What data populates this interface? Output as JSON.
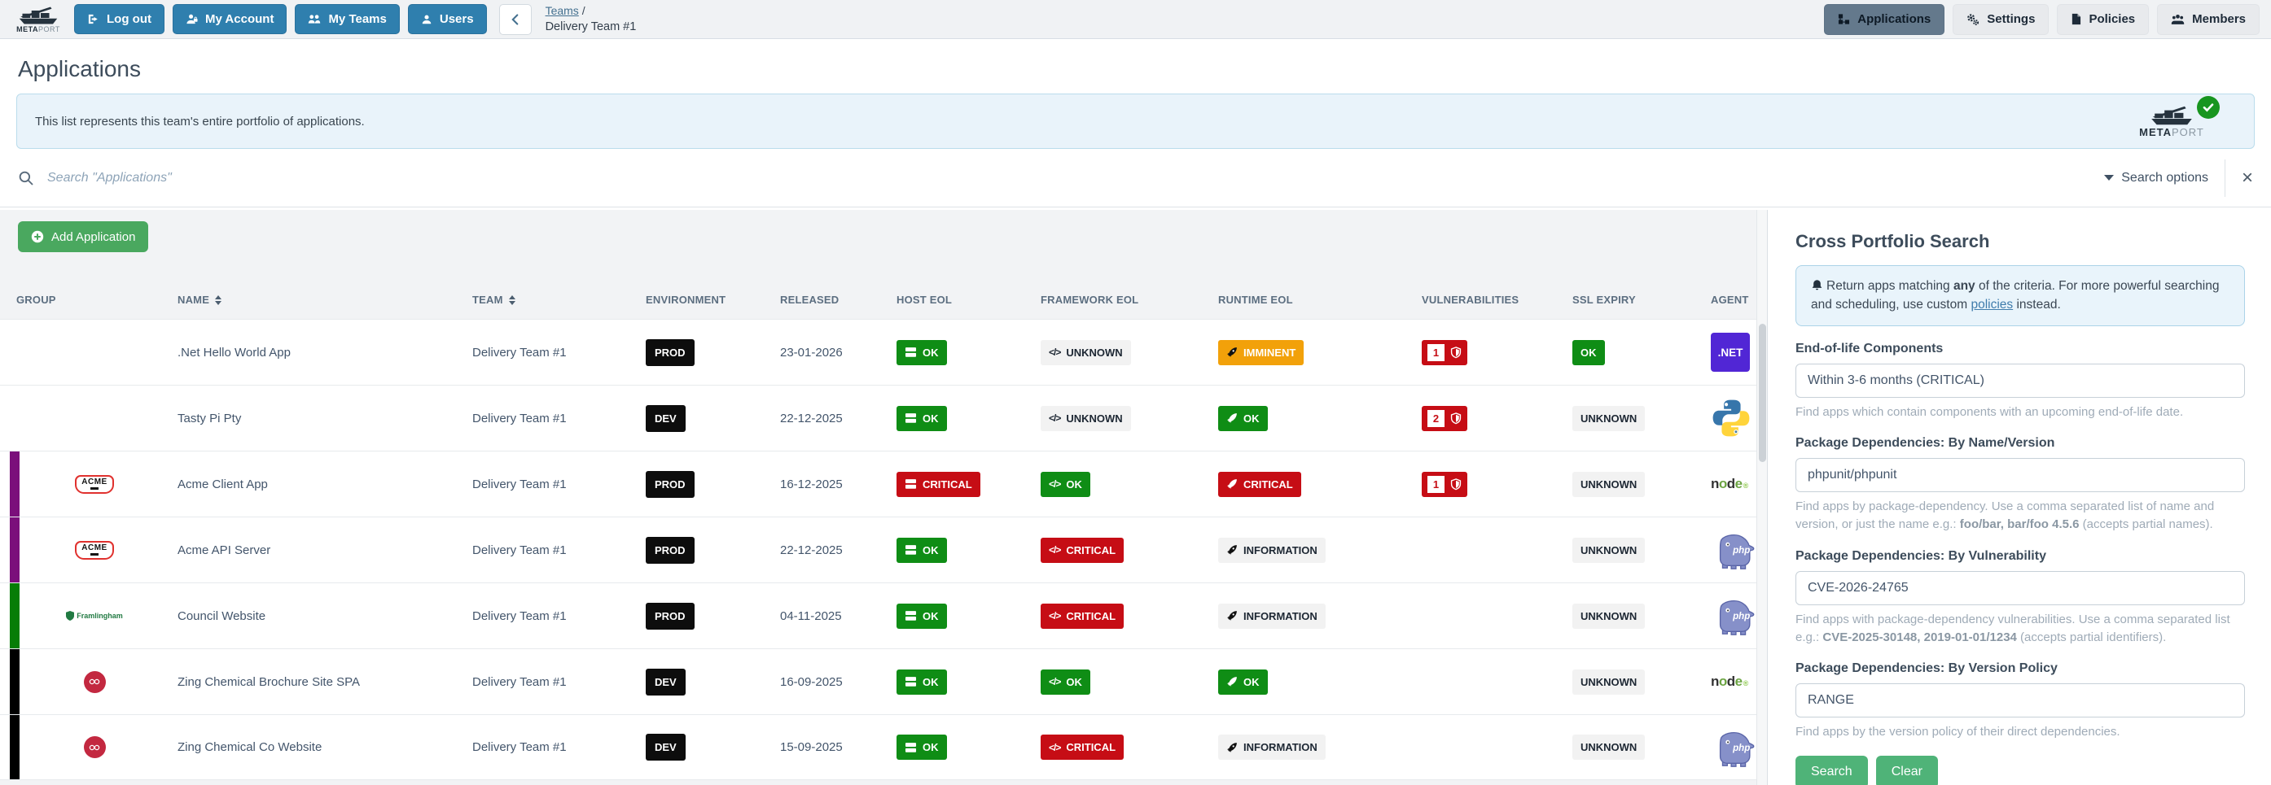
{
  "topbar": {
    "brand": {
      "bold": "META",
      "light": "PORT"
    },
    "nav_buttons": [
      {
        "label": "Log out",
        "icon": "logout-icon"
      },
      {
        "label": "My Account",
        "icon": "my-account-icon"
      },
      {
        "label": "My Teams",
        "icon": "my-teams-icon"
      },
      {
        "label": "Users",
        "icon": "user-icon"
      }
    ],
    "breadcrumb": {
      "parent": "Teams",
      "separator": "/",
      "current": "Delivery Team #1"
    },
    "context_buttons": [
      {
        "label": "Applications",
        "icon": "applications-icon",
        "active": true
      },
      {
        "label": "Settings",
        "icon": "settings-icon",
        "active": false
      },
      {
        "label": "Policies",
        "icon": "policies-icon",
        "active": false
      },
      {
        "label": "Members",
        "icon": "members-icon",
        "active": false
      }
    ]
  },
  "page": {
    "title": "Applications",
    "banner_text": "This list represents this team's entire portfolio of applications.",
    "search": {
      "placeholder": "Search \"Applications\"",
      "options_label": "Search options",
      "close_label": "×"
    },
    "add_button_label": "Add Application"
  },
  "table": {
    "columns": [
      {
        "label": "GROUP",
        "sortable": false
      },
      {
        "label": "NAME",
        "sortable": true
      },
      {
        "label": "TEAM",
        "sortable": true
      },
      {
        "label": "ENVIRONMENT",
        "sortable": false
      },
      {
        "label": "RELEASED",
        "sortable": false
      },
      {
        "label": "HOST EOL",
        "sortable": false
      },
      {
        "label": "FRAMEWORK EOL",
        "sortable": false
      },
      {
        "label": "RUNTIME EOL",
        "sortable": false
      },
      {
        "label": "VULNERABILITIES",
        "sortable": false
      },
      {
        "label": "SSL EXPIRY",
        "sortable": false
      },
      {
        "label": "AGENT",
        "sortable": false
      }
    ],
    "rows": [
      {
        "strip": null,
        "logo": null,
        "name": ".Net Hello World App",
        "team": "Delivery Team #1",
        "environment": "PROD",
        "released": "23-01-2026",
        "host_eol": {
          "label": "OK",
          "variant": "ok"
        },
        "framework_eol": {
          "label": "UNKNOWN",
          "variant": "muted"
        },
        "runtime_eol": {
          "label": "IMMINENT",
          "variant": "imminent"
        },
        "vulnerabilities": "1",
        "ssl_expiry": {
          "label": "OK",
          "variant": "ok"
        },
        "agent": "dotnet"
      },
      {
        "strip": null,
        "logo": null,
        "name": "Tasty Pi Pty",
        "team": "Delivery Team #1",
        "environment": "DEV",
        "released": "22-12-2025",
        "host_eol": {
          "label": "OK",
          "variant": "ok"
        },
        "framework_eol": {
          "label": "UNKNOWN",
          "variant": "muted"
        },
        "runtime_eol": {
          "label": "OK",
          "variant": "ok"
        },
        "vulnerabilities": "2",
        "ssl_expiry": {
          "label": "UNKNOWN",
          "variant": "muted"
        },
        "agent": "python"
      },
      {
        "strip": "#7b0f7b",
        "logo": "acme",
        "name": "Acme Client App",
        "team": "Delivery Team #1",
        "environment": "PROD",
        "released": "16-12-2025",
        "host_eol": {
          "label": "CRITICAL",
          "variant": "critical"
        },
        "framework_eol": {
          "label": "OK",
          "variant": "ok"
        },
        "runtime_eol": {
          "label": "CRITICAL",
          "variant": "critical"
        },
        "vulnerabilities": "1",
        "ssl_expiry": {
          "label": "UNKNOWN",
          "variant": "muted"
        },
        "agent": "node"
      },
      {
        "strip": "#7b0f7b",
        "logo": "acme",
        "name": "Acme API Server",
        "team": "Delivery Team #1",
        "environment": "PROD",
        "released": "22-12-2025",
        "host_eol": {
          "label": "OK",
          "variant": "ok"
        },
        "framework_eol": {
          "label": "CRITICAL",
          "variant": "critical"
        },
        "runtime_eol": {
          "label": "INFORMATION",
          "variant": "muted"
        },
        "vulnerabilities": null,
        "ssl_expiry": {
          "label": "UNKNOWN",
          "variant": "muted"
        },
        "agent": "php"
      },
      {
        "strip": "#067d06",
        "logo": "framlingham",
        "name": "Council Website",
        "team": "Delivery Team #1",
        "environment": "PROD",
        "released": "04-11-2025",
        "host_eol": {
          "label": "OK",
          "variant": "ok"
        },
        "framework_eol": {
          "label": "CRITICAL",
          "variant": "critical"
        },
        "runtime_eol": {
          "label": "INFORMATION",
          "variant": "muted"
        },
        "vulnerabilities": null,
        "ssl_expiry": {
          "label": "UNKNOWN",
          "variant": "muted"
        },
        "agent": "php"
      },
      {
        "strip": "#000000",
        "logo": "zing",
        "name": "Zing Chemical Brochure Site SPA",
        "team": "Delivery Team #1",
        "environment": "DEV",
        "released": "16-09-2025",
        "host_eol": {
          "label": "OK",
          "variant": "ok"
        },
        "framework_eol": {
          "label": "OK",
          "variant": "ok"
        },
        "runtime_eol": {
          "label": "OK",
          "variant": "ok"
        },
        "vulnerabilities": null,
        "ssl_expiry": {
          "label": "UNKNOWN",
          "variant": "muted"
        },
        "agent": "node"
      },
      {
        "strip": "#000000",
        "logo": "zing",
        "name": "Zing Chemical Co Website",
        "team": "Delivery Team #1",
        "environment": "DEV",
        "released": "15-09-2025",
        "host_eol": {
          "label": "OK",
          "variant": "ok"
        },
        "framework_eol": {
          "label": "CRITICAL",
          "variant": "critical"
        },
        "runtime_eol": {
          "label": "INFORMATION",
          "variant": "muted"
        },
        "vulnerabilities": null,
        "ssl_expiry": {
          "label": "UNKNOWN",
          "variant": "muted"
        },
        "agent": "php"
      }
    ],
    "group_logo_text": {
      "acme": "ACME",
      "framlingham": "Framlingham"
    },
    "agent_labels": {
      "dotnet": ".NET",
      "node": "node",
      "php": "php"
    }
  },
  "panel": {
    "title": "Cross Portfolio Search",
    "notice_parts": [
      {
        "t": "Return apps matching "
      },
      {
        "t": "any",
        "b": true
      },
      {
        "t": " of the criteria. For more powerful searching and scheduling, use custom "
      },
      {
        "t": "policies",
        "link": true
      },
      {
        "t": " instead."
      }
    ],
    "fields": [
      {
        "id": "eol-components",
        "label": "End-of-life Components",
        "value": "Within 3-6 months (CRITICAL)",
        "help": [
          {
            "t": "Find apps which contain components with an upcoming end-of-life date."
          }
        ]
      },
      {
        "id": "dep-name-version",
        "label": "Package Dependencies: By Name/Version",
        "value": "phpunit/phpunit",
        "help": [
          {
            "t": "Find apps by package-dependency. Use a comma separated list of name and version, or just the name e.g.: "
          },
          {
            "t": "foo/bar, bar/foo 4.5.6",
            "b": true
          },
          {
            "t": " (accepts partial names)."
          }
        ]
      },
      {
        "id": "dep-vulnerability",
        "label": "Package Dependencies: By Vulnerability",
        "value": "CVE-2026-24765",
        "help": [
          {
            "t": "Find apps with package-dependency vulnerabilities. Use a comma separated list e.g.: "
          },
          {
            "t": "CVE-2025-30148, 2019-01-01/1234",
            "b": true
          },
          {
            "t": " (accepts partial identifiers)."
          }
        ]
      },
      {
        "id": "dep-version-policy",
        "label": "Package Dependencies: By Version Policy",
        "value": "RANGE",
        "help": [
          {
            "t": "Find apps by the version policy of their direct dependencies."
          }
        ]
      }
    ],
    "buttons": {
      "search": "Search",
      "clear": "Clear"
    }
  },
  "colors": {
    "ok": "#0f8d15",
    "critical": "#c60d15",
    "imminent": "#f2a10a",
    "muted": "#f2f2f2",
    "accent_blue": "#2f7fae",
    "accent_green": "#4aa85f",
    "panel_green": "#4fb378",
    "strip_acme": "#7b0f7b",
    "strip_council": "#067d06",
    "strip_zing": "#000000"
  }
}
